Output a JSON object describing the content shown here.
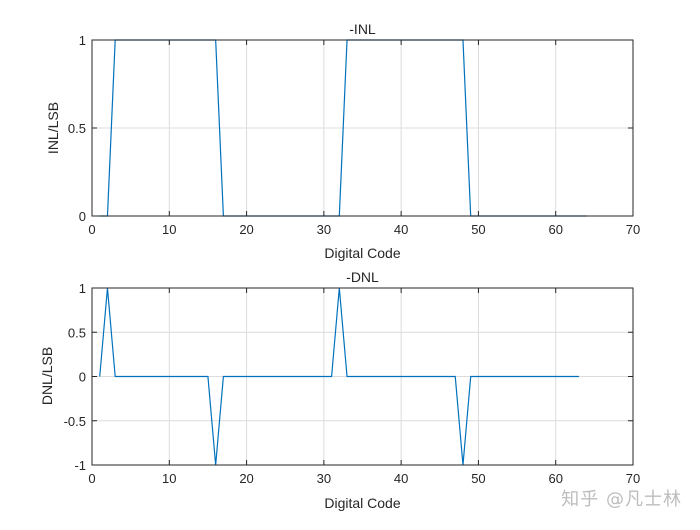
{
  "figure": {
    "background": "#ffffff",
    "line_color": "#0072BD",
    "grid_color": "#dcdcdc",
    "axes_color": "#262626"
  },
  "watermark": "知乎 @凡士林",
  "chart_data": [
    {
      "type": "line",
      "title": "-INL",
      "xlabel": "Digital Code",
      "ylabel": "INL/LSB",
      "xlim": [
        0,
        70
      ],
      "ylim": [
        0,
        1
      ],
      "xticks": [
        0,
        10,
        20,
        30,
        40,
        50,
        60,
        70
      ],
      "yticks": [
        0,
        0.5,
        1
      ],
      "ytick_labels": [
        "0",
        "0.5",
        "1"
      ],
      "grid": true,
      "x": [
        1,
        2,
        3,
        4,
        5,
        6,
        7,
        8,
        9,
        10,
        11,
        12,
        13,
        14,
        15,
        16,
        17,
        18,
        19,
        20,
        21,
        22,
        23,
        24,
        25,
        26,
        27,
        28,
        29,
        30,
        31,
        32,
        33,
        34,
        35,
        36,
        37,
        38,
        39,
        40,
        41,
        42,
        43,
        44,
        45,
        46,
        47,
        48,
        49,
        50,
        51,
        52,
        53,
        54,
        55,
        56,
        57,
        58,
        59,
        60,
        61,
        62,
        63,
        64
      ],
      "values": [
        0,
        0,
        1,
        1,
        1,
        1,
        1,
        1,
        1,
        1,
        1,
        1,
        1,
        1,
        1,
        1,
        0,
        0,
        0,
        0,
        0,
        0,
        0,
        0,
        0,
        0,
        0,
        0,
        0,
        0,
        0,
        0,
        1,
        1,
        1,
        1,
        1,
        1,
        1,
        1,
        1,
        1,
        1,
        1,
        1,
        1,
        1,
        1,
        0,
        0,
        0,
        0,
        0,
        0,
        0,
        0,
        0,
        0,
        0,
        0,
        0,
        0,
        0,
        0
      ]
    },
    {
      "type": "line",
      "title": "-DNL",
      "xlabel": "Digital Code",
      "ylabel": "DNL/LSB",
      "xlim": [
        0,
        70
      ],
      "ylim": [
        -1,
        1
      ],
      "xticks": [
        0,
        10,
        20,
        30,
        40,
        50,
        60,
        70
      ],
      "yticks": [
        -1,
        -0.5,
        0,
        0.5,
        1
      ],
      "ytick_labels": [
        "-1",
        "-0.5",
        "0",
        "0.5",
        "1"
      ],
      "grid": true,
      "x": [
        1,
        2,
        3,
        4,
        5,
        6,
        7,
        8,
        9,
        10,
        11,
        12,
        13,
        14,
        15,
        16,
        17,
        18,
        19,
        20,
        21,
        22,
        23,
        24,
        25,
        26,
        27,
        28,
        29,
        30,
        31,
        32,
        33,
        34,
        35,
        36,
        37,
        38,
        39,
        40,
        41,
        42,
        43,
        44,
        45,
        46,
        47,
        48,
        49,
        50,
        51,
        52,
        53,
        54,
        55,
        56,
        57,
        58,
        59,
        60,
        61,
        62,
        63
      ],
      "values": [
        0,
        1,
        0,
        0,
        0,
        0,
        0,
        0,
        0,
        0,
        0,
        0,
        0,
        0,
        0,
        -1,
        0,
        0,
        0,
        0,
        0,
        0,
        0,
        0,
        0,
        0,
        0,
        0,
        0,
        0,
        0,
        1,
        0,
        0,
        0,
        0,
        0,
        0,
        0,
        0,
        0,
        0,
        0,
        0,
        0,
        0,
        0,
        -1,
        0,
        0,
        0,
        0,
        0,
        0,
        0,
        0,
        0,
        0,
        0,
        0,
        0,
        0,
        0
      ]
    }
  ]
}
